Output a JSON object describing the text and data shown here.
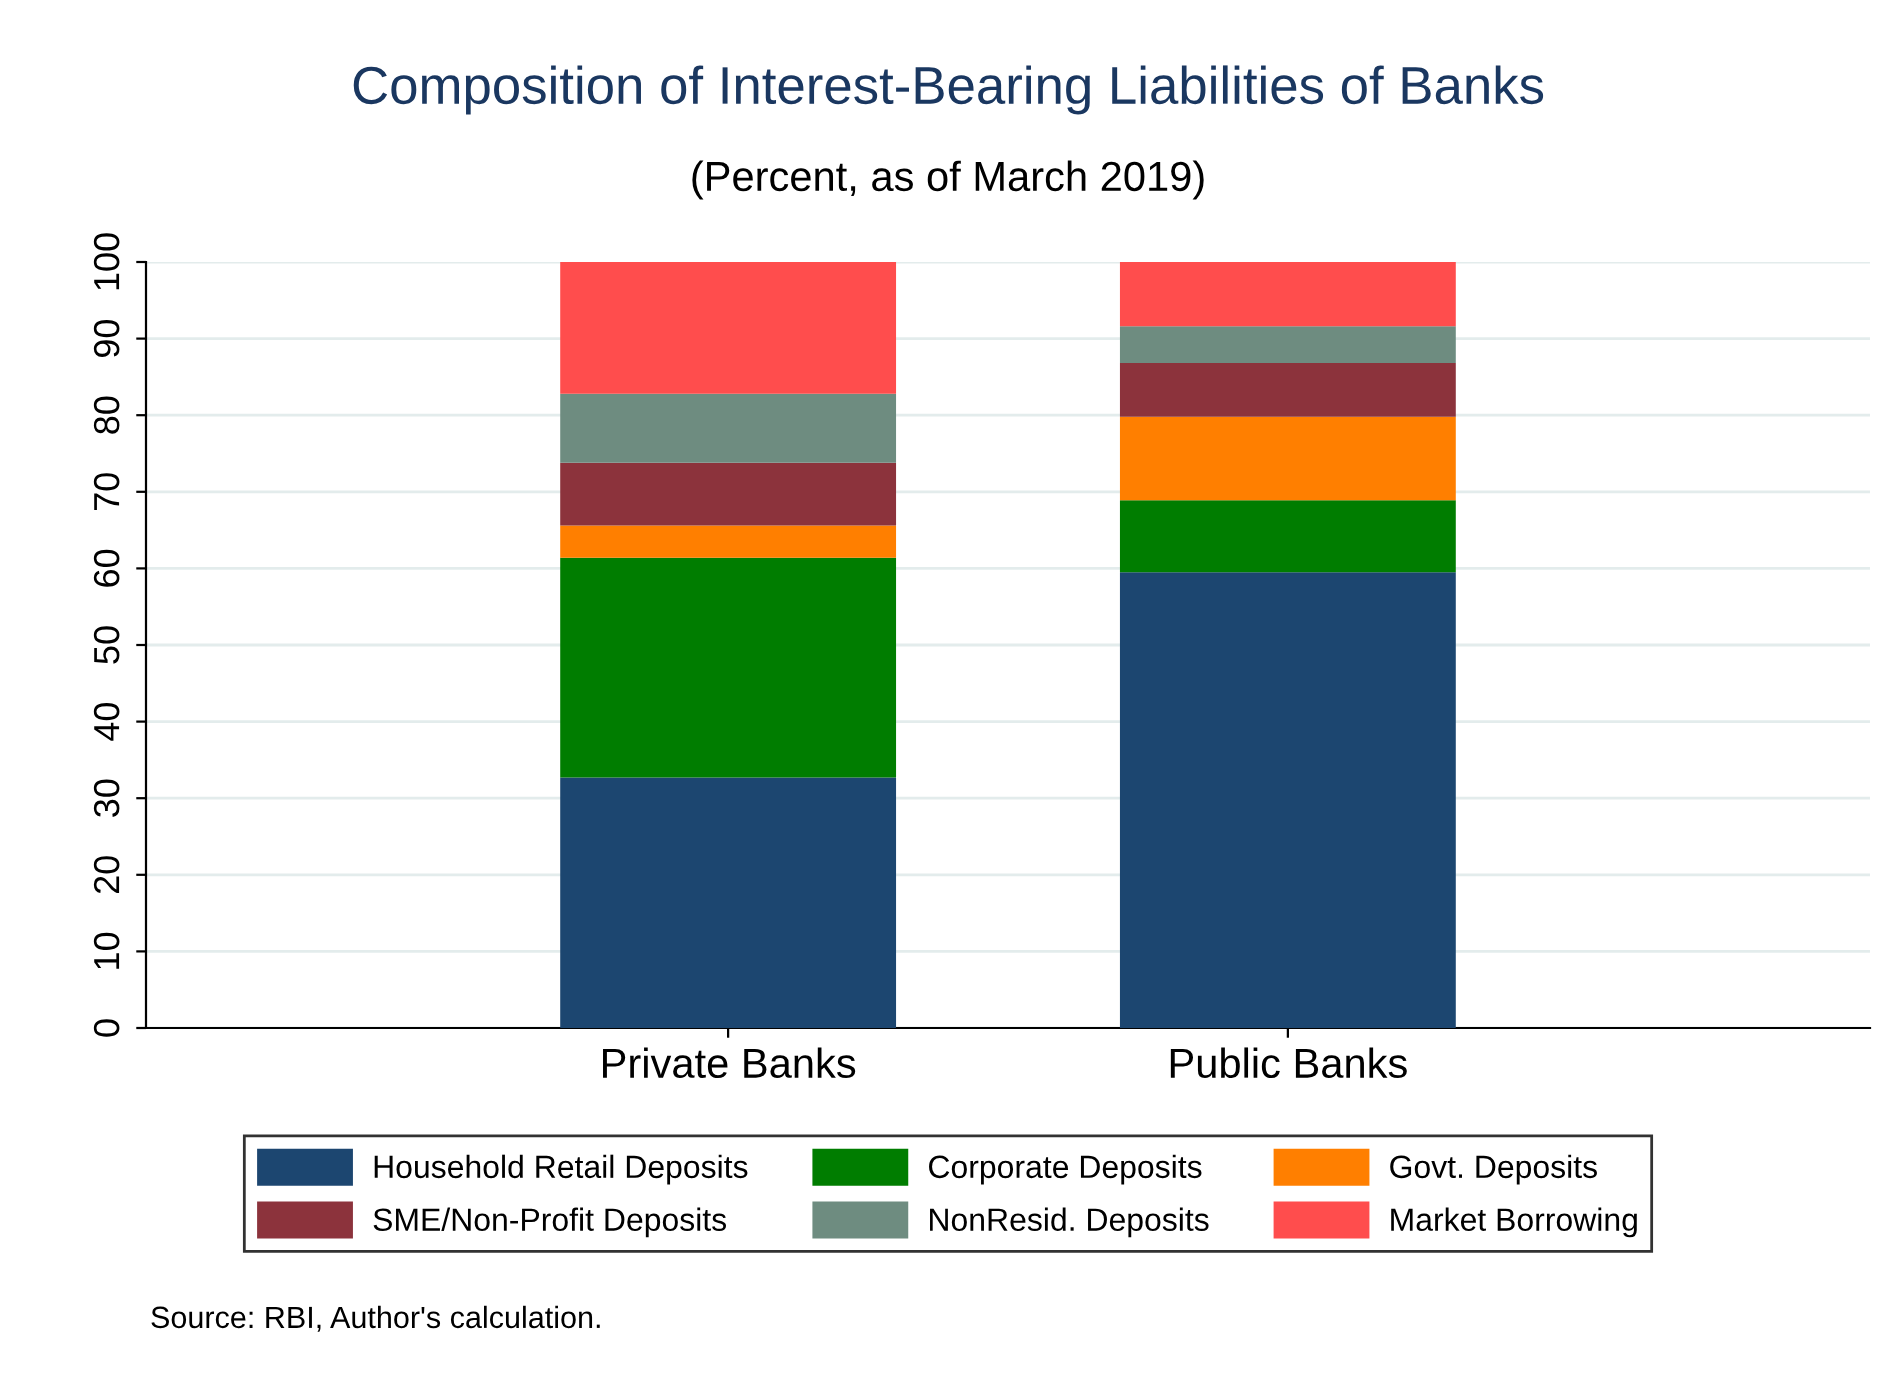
{
  "chart_data": {
    "type": "bar",
    "title": "Composition of Interest-Bearing Liabilities of Banks",
    "subtitle": "(Percent, as of March 2019)",
    "categories": [
      "Private Banks",
      "Public Banks"
    ],
    "stacked": true,
    "series": [
      {
        "name": "Household Retail Deposits",
        "color": "#1c4670",
        "values": [
          32.7,
          59.5
        ]
      },
      {
        "name": "Corporate Deposits",
        "color": "#007d00",
        "values": [
          28.7,
          9.4
        ]
      },
      {
        "name": "Govt. Deposits",
        "color": "#ff7f00",
        "values": [
          4.2,
          10.9
        ]
      },
      {
        "name": "SME/Non-Profit Deposits",
        "color": "#8c333c",
        "values": [
          8.2,
          7.0
        ]
      },
      {
        "name": "NonResid. Deposits",
        "color": "#6e8c80",
        "values": [
          9.0,
          4.8
        ]
      },
      {
        "name": "Market Borrowing",
        "color": "#ff4d4d",
        "values": [
          17.2,
          8.4
        ]
      }
    ],
    "ylim": [
      0,
      100
    ],
    "yticks": [
      0,
      10,
      20,
      30,
      40,
      50,
      60,
      70,
      80,
      90,
      100
    ],
    "grid": "y",
    "legend": "bottom",
    "annotations": [
      "Source: RBI, Author's calculation."
    ]
  }
}
